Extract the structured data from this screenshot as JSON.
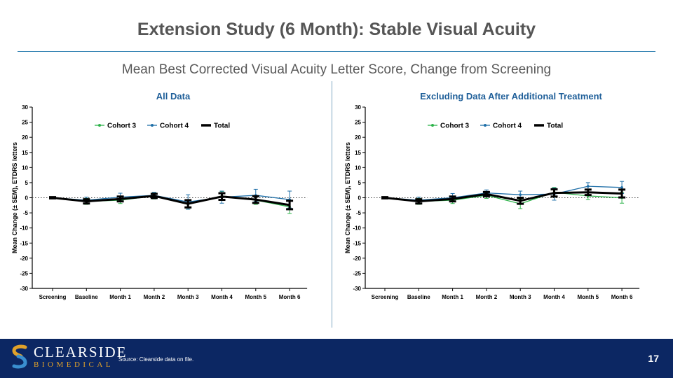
{
  "slide": {
    "title": "Extension Study (6 Month): Stable Visual Acuity",
    "subtitle": "Mean Best Corrected Visual Acuity Letter Score, Change from Screening",
    "source": "Source: Clearside data on file.",
    "page_number": "17"
  },
  "logo": {
    "name": "CLEARSIDE",
    "tagline": "BIOMEDICAL"
  },
  "colors": {
    "cohort3": "#2db34a",
    "cohort4": "#1f6fa8",
    "total": "#000000",
    "panel_title": "#1f5f99",
    "footer": "#0c2763"
  },
  "chart_data": [
    {
      "type": "line",
      "title": "All Data",
      "xlabel": "",
      "ylabel": "Mean Change (± SEM), ETDRS letters",
      "ylim": [
        -30,
        30
      ],
      "yticks": [
        30,
        25,
        20,
        15,
        10,
        5,
        0,
        -5,
        -10,
        -15,
        -20,
        -25,
        -30
      ],
      "categories": [
        "Screening",
        "Baseline",
        "Month 1",
        "Month 2",
        "Month 3",
        "Month 4",
        "Month 5",
        "Month 6"
      ],
      "reference_line": 0,
      "legend_position": "top-left",
      "series": [
        {
          "name": "Cohort 3",
          "values": [
            0,
            -1.2,
            -0.8,
            0.6,
            -2.2,
            0.6,
            -0.8,
            -3.0
          ],
          "sem": [
            0.3,
            1.0,
            1.1,
            1.0,
            1.6,
            1.5,
            1.4,
            2.2
          ]
        },
        {
          "name": "Cohort 4",
          "values": [
            0,
            -0.8,
            0.2,
            0.8,
            -1.4,
            0.2,
            0.8,
            -0.6
          ],
          "sem": [
            0.3,
            1.0,
            1.3,
            1.0,
            2.4,
            2.0,
            2.0,
            2.8
          ]
        },
        {
          "name": "Total",
          "values": [
            0,
            -1.2,
            -0.4,
            0.6,
            -2.0,
            0.4,
            -0.6,
            -2.4
          ],
          "sem": [
            0.2,
            0.7,
            0.8,
            0.7,
            1.2,
            1.1,
            1.1,
            1.4
          ]
        }
      ]
    },
    {
      "type": "line",
      "title": "Excluding Data After Additional Treatment",
      "xlabel": "",
      "ylabel": "Mean Change (± SEM), ETDRS letters",
      "ylim": [
        -30,
        30
      ],
      "yticks": [
        30,
        25,
        20,
        15,
        10,
        5,
        0,
        -5,
        -10,
        -15,
        -20,
        -25,
        -30
      ],
      "categories": [
        "Screening",
        "Baseline",
        "Month 1",
        "Month 2",
        "Month 3",
        "Month 4",
        "Month 5",
        "Month 6"
      ],
      "reference_line": 0,
      "legend_position": "top-left",
      "series": [
        {
          "name": "Cohort 3",
          "values": [
            0,
            -1.2,
            -0.8,
            0.8,
            -2.0,
            1.8,
            0.6,
            0.0
          ],
          "sem": [
            0.3,
            1.0,
            1.1,
            1.0,
            1.6,
            1.6,
            1.2,
            1.8
          ]
        },
        {
          "name": "Cohort 4",
          "values": [
            0,
            -0.8,
            0.0,
            1.6,
            1.0,
            1.2,
            3.8,
            3.4
          ],
          "sem": [
            0.3,
            1.0,
            1.4,
            1.0,
            1.2,
            2.0,
            1.2,
            2.0
          ]
        },
        {
          "name": "Total",
          "values": [
            0,
            -1.2,
            -0.4,
            1.2,
            -1.0,
            1.6,
            1.8,
            1.4
          ],
          "sem": [
            0.2,
            0.7,
            0.8,
            0.7,
            1.0,
            1.2,
            0.9,
            1.3
          ]
        }
      ]
    }
  ]
}
